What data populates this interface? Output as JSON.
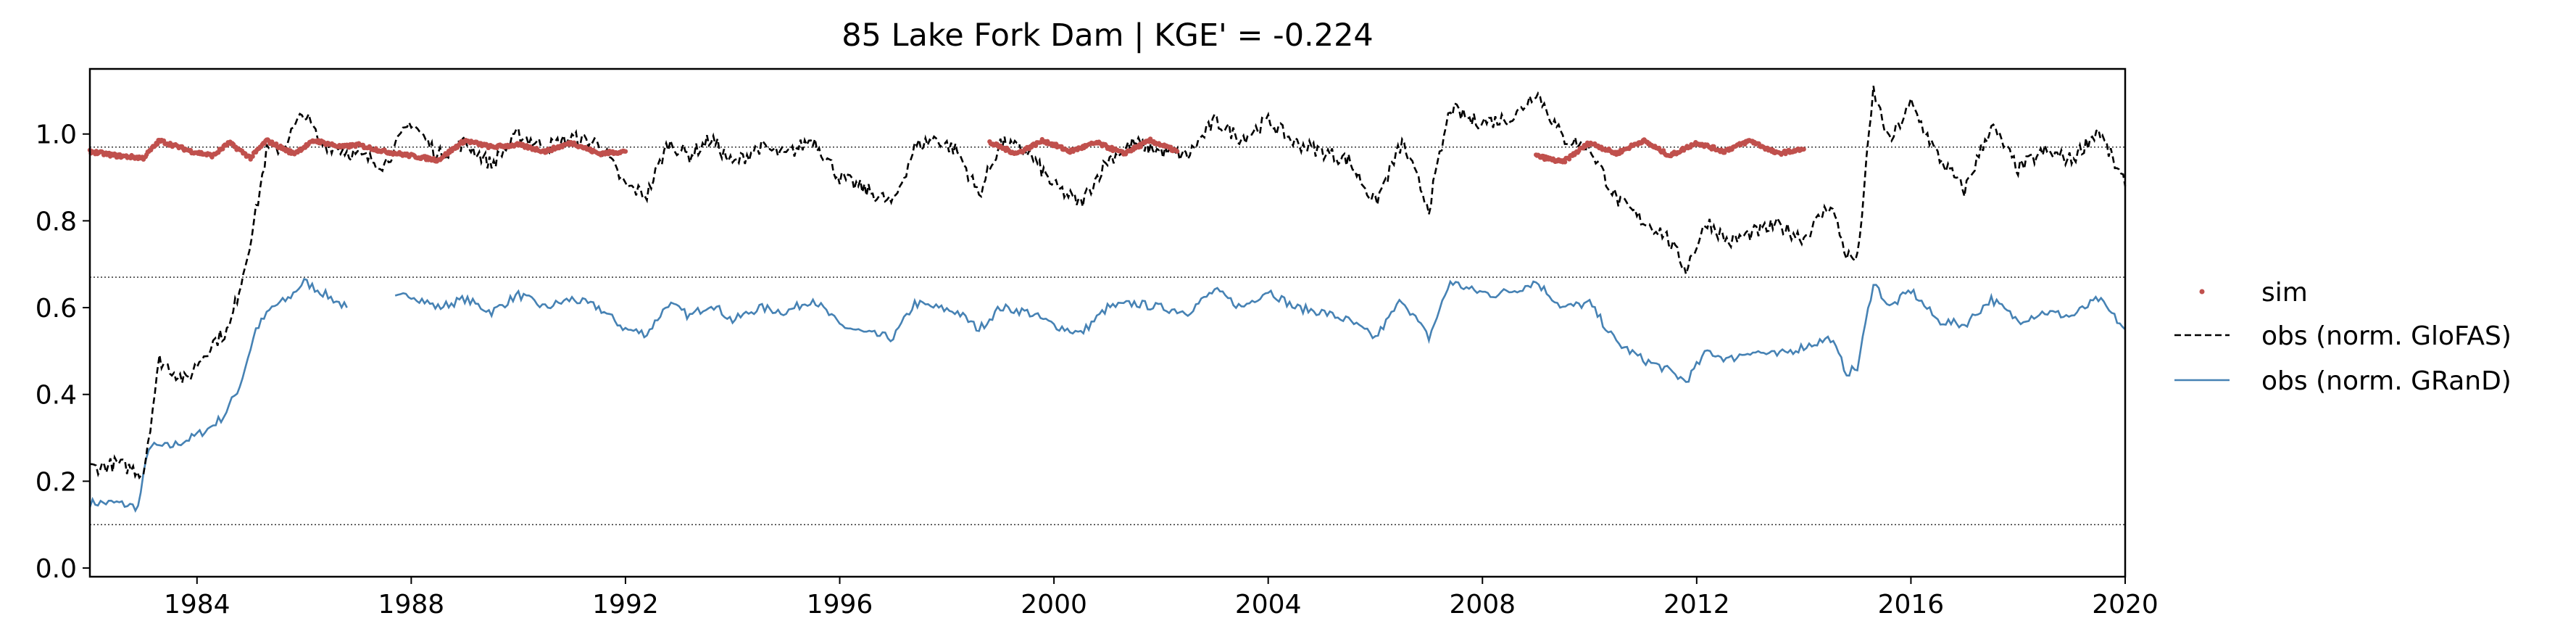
{
  "chart_data": {
    "type": "line",
    "title": "85  Lake Fork Dam | KGE' = -0.224",
    "xlim": [
      1982.0,
      2020.0
    ],
    "ylim": [
      -0.02,
      1.15
    ],
    "x_ticks": [
      1984,
      1988,
      1992,
      1996,
      2000,
      2004,
      2008,
      2012,
      2016,
      2020
    ],
    "y_ticks": [
      0.0,
      0.2,
      0.4,
      0.6,
      0.8,
      1.0
    ],
    "y_tick_labels": [
      "0.0",
      "0.2",
      "0.4",
      "0.6",
      "0.8",
      "1.0"
    ],
    "reference_lines": [
      0.97,
      0.67,
      0.1
    ],
    "grid": false,
    "legend_position": "right-outside",
    "colors": {
      "sim": "#c0504d",
      "glofas": "#000000",
      "grand": "#4682b4"
    },
    "series": [
      {
        "name": "sim",
        "style": "dots",
        "segments": [
          {
            "x": [
              1982.0,
              1982.5,
              1983.0,
              1983.3,
              1983.9,
              1984.3,
              1984.6,
              1985.0,
              1985.3,
              1985.8,
              1986.2,
              1986.7,
              1987.0,
              1987.5,
              1988.0,
              1988.5,
              1989.0,
              1989.5,
              1990.0,
              1990.5,
              1991.0,
              1991.5,
              1992.0
            ],
            "y": [
              0.96,
              0.95,
              0.945,
              0.985,
              0.96,
              0.95,
              0.98,
              0.945,
              0.985,
              0.955,
              0.985,
              0.97,
              0.975,
              0.96,
              0.95,
              0.94,
              0.985,
              0.97,
              0.975,
              0.96,
              0.98,
              0.955,
              0.96
            ]
          },
          {
            "x": [
              1998.8,
              1999.3,
              1999.8,
              2000.3,
              2000.8,
              2001.3,
              2001.8,
              2002.3
            ],
            "y": [
              0.98,
              0.955,
              0.985,
              0.96,
              0.98,
              0.955,
              0.985,
              0.96
            ]
          },
          {
            "x": [
              2009.0,
              2009.5,
              2010.0,
              2010.5,
              2011.0,
              2011.5,
              2012.0,
              2012.5,
              2013.0,
              2013.5,
              2014.0
            ],
            "y": [
              0.95,
              0.935,
              0.98,
              0.955,
              0.985,
              0.95,
              0.98,
              0.96,
              0.985,
              0.955,
              0.965
            ]
          }
        ]
      },
      {
        "name": "obs (norm. GloFAS)",
        "style": "dashed",
        "x": [
          1982.0,
          1982.5,
          1983.0,
          1983.3,
          1983.8,
          1984.0,
          1984.3,
          1984.6,
          1984.9,
          1985.1,
          1985.3,
          1985.6,
          1986.0,
          1986.3,
          1986.6,
          1987.0,
          1987.5,
          1988.0,
          1988.5,
          1989.0,
          1989.5,
          1990.0,
          1990.5,
          1991.0,
          1991.5,
          1992.0,
          1992.4,
          1992.8,
          1993.2,
          1993.6,
          1994.0,
          1994.5,
          1995.0,
          1995.5,
          1996.0,
          1996.5,
          1997.0,
          1997.4,
          1997.8,
          1998.2,
          1998.6,
          1999.0,
          1999.5,
          2000.0,
          2000.5,
          2001.0,
          2001.5,
          2002.0,
          2002.5,
          2003.0,
          2003.5,
          2004.0,
          2004.5,
          2005.0,
          2005.5,
          2006.0,
          2006.5,
          2007.0,
          2007.4,
          2007.8,
          2008.2,
          2008.6,
          2009.0,
          2009.5,
          2010.0,
          2010.5,
          2011.0,
          2011.4,
          2011.8,
          2012.2,
          2012.6,
          2013.0,
          2013.5,
          2014.0,
          2014.5,
          2014.8,
          2015.0,
          2015.3,
          2015.6,
          2016.0,
          2016.5,
          2017.0,
          2017.5,
          2018.0,
          2018.5,
          2019.0,
          2019.5,
          2020.0
        ],
        "y": [
          0.23,
          0.24,
          0.22,
          0.48,
          0.43,
          0.47,
          0.52,
          0.55,
          0.7,
          0.82,
          0.96,
          0.97,
          1.05,
          0.98,
          0.97,
          0.95,
          0.93,
          1.03,
          0.95,
          0.98,
          0.93,
          1.0,
          0.97,
          0.99,
          0.98,
          0.88,
          0.86,
          0.98,
          0.95,
          0.99,
          0.93,
          0.97,
          0.95,
          0.99,
          0.9,
          0.87,
          0.84,
          0.97,
          0.99,
          0.96,
          0.86,
          0.98,
          0.96,
          0.88,
          0.84,
          0.94,
          0.98,
          0.96,
          0.95,
          1.03,
          0.99,
          1.03,
          0.98,
          0.96,
          0.94,
          0.84,
          0.98,
          0.83,
          1.06,
          1.03,
          1.03,
          1.04,
          1.1,
          0.99,
          0.97,
          0.85,
          0.8,
          0.77,
          0.69,
          0.8,
          0.75,
          0.77,
          0.79,
          0.76,
          0.84,
          0.72,
          0.71,
          1.1,
          0.98,
          1.07,
          0.95,
          0.87,
          1.02,
          0.92,
          0.96,
          0.94,
          1.01,
          0.88
        ]
      },
      {
        "name": "obs (norm. GRanD)",
        "style": "solid",
        "segments": [
          {
            "x": [
              1982.0,
              1982.5,
              1982.9,
              1983.1,
              1983.5,
              1983.9,
              1984.2,
              1984.5,
              1984.8,
              1985.1,
              1985.4,
              1985.7,
              1986.0,
              1986.4,
              1986.8
            ],
            "y": [
              0.15,
              0.15,
              0.14,
              0.28,
              0.28,
              0.3,
              0.32,
              0.35,
              0.42,
              0.55,
              0.6,
              0.62,
              0.66,
              0.63,
              0.6
            ]
          },
          {
            "x": [
              1987.7,
              1988.0,
              1988.5,
              1989.0,
              1989.5,
              1990.0,
              1990.5,
              1991.0,
              1991.5,
              1992.0,
              1992.4,
              1992.8,
              1993.2,
              1993.6,
              1994.0,
              1994.5,
              1995.0,
              1995.5,
              1996.0,
              1996.5,
              1997.0,
              1997.4,
              1997.8,
              1998.2,
              1998.6,
              1999.0,
              1999.5,
              2000.0,
              2000.5,
              2001.0,
              2001.5,
              2002.0,
              2002.5,
              2003.0,
              2003.5,
              2004.0,
              2004.5,
              2005.0,
              2005.5,
              2006.0,
              2006.5,
              2007.0,
              2007.4,
              2007.8,
              2008.2,
              2008.6,
              2009.0,
              2009.5,
              2010.0,
              2010.5,
              2011.0,
              2011.4,
              2011.8,
              2012.2,
              2012.6,
              2013.0,
              2013.5,
              2014.0,
              2014.5,
              2014.8,
              2015.0,
              2015.3,
              2015.6,
              2016.0,
              2016.5,
              2017.0,
              2017.5,
              2018.0,
              2018.5,
              2019.0,
              2019.5,
              2020.0
            ],
            "y": [
              0.62,
              0.63,
              0.6,
              0.62,
              0.59,
              0.63,
              0.6,
              0.62,
              0.6,
              0.55,
              0.54,
              0.61,
              0.58,
              0.61,
              0.57,
              0.6,
              0.59,
              0.62,
              0.56,
              0.54,
              0.53,
              0.61,
              0.6,
              0.59,
              0.55,
              0.6,
              0.59,
              0.56,
              0.54,
              0.6,
              0.61,
              0.6,
              0.59,
              0.64,
              0.6,
              0.64,
              0.6,
              0.59,
              0.57,
              0.53,
              0.62,
              0.53,
              0.66,
              0.64,
              0.63,
              0.64,
              0.66,
              0.6,
              0.61,
              0.52,
              0.48,
              0.46,
              0.43,
              0.5,
              0.48,
              0.5,
              0.49,
              0.51,
              0.53,
              0.45,
              0.46,
              0.66,
              0.6,
              0.64,
              0.57,
              0.56,
              0.62,
              0.57,
              0.59,
              0.58,
              0.62,
              0.55
            ]
          }
        ]
      }
    ]
  }
}
